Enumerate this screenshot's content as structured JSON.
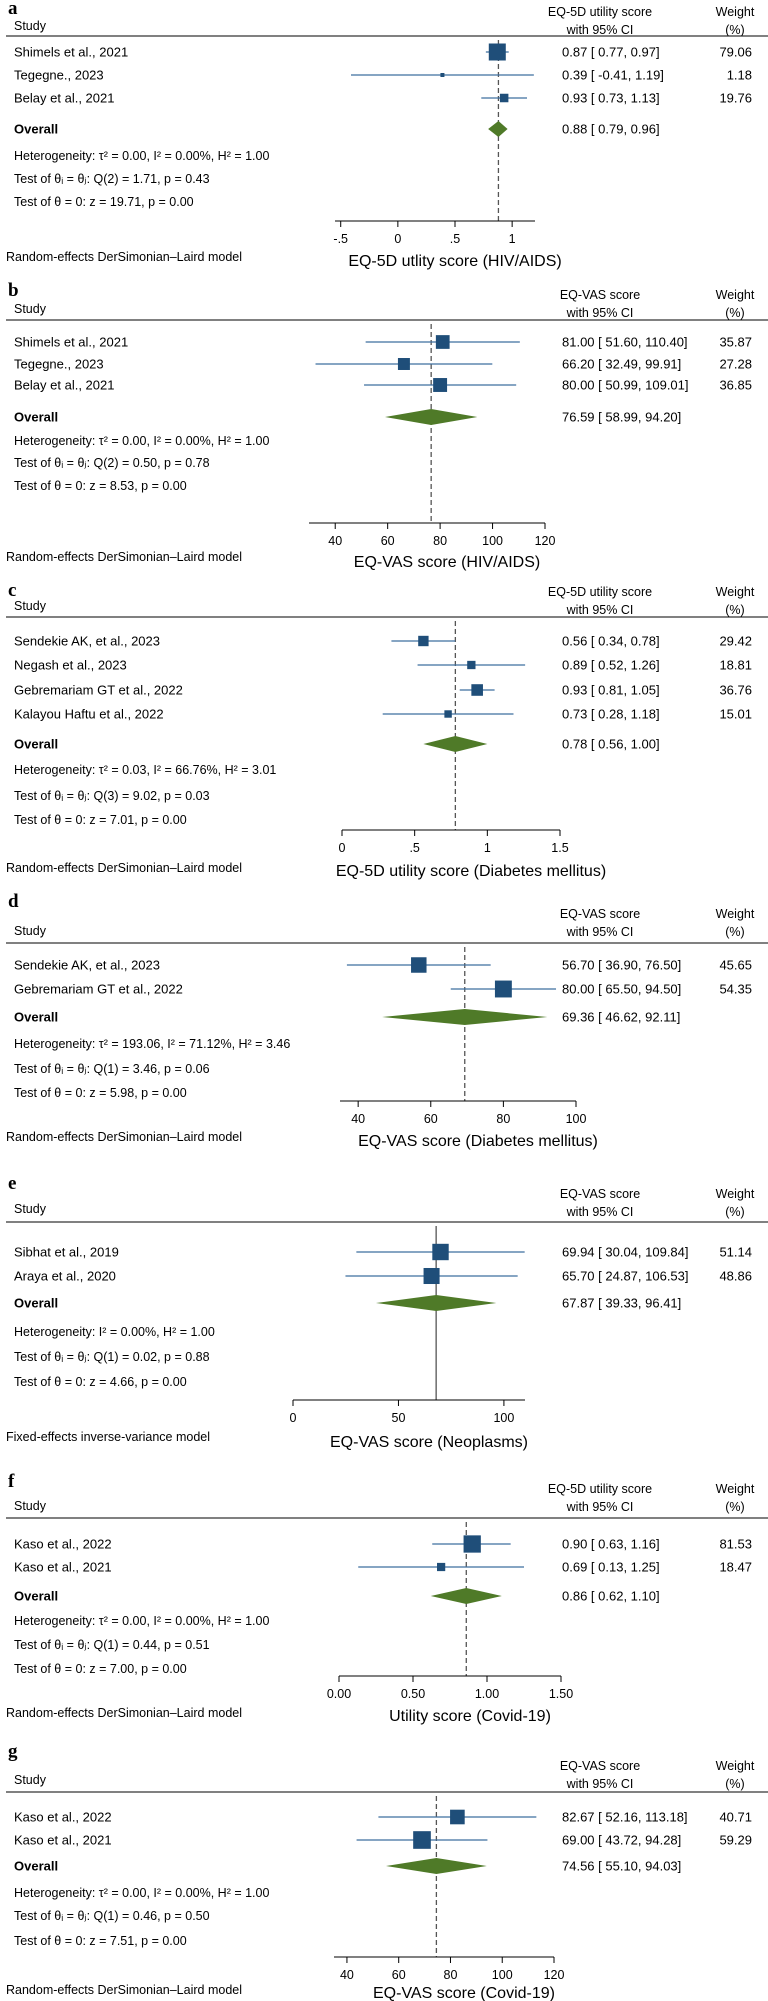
{
  "chart_data": [
    {
      "type": "forest",
      "label": "a",
      "metric_header": [
        "EQ-5D utility score",
        "with 95% CI"
      ],
      "weight_header": [
        "Weight",
        "(%)"
      ],
      "study_header": "Study",
      "studies": [
        {
          "name": "Shimels et al., 2021",
          "est": 0.87,
          "lo": 0.77,
          "hi": 0.97,
          "ci_text": "0.87 [  0.77,  0.97]",
          "weight": 79.06,
          "weight_text": "79.06"
        },
        {
          "name": "Tegegne., 2023",
          "est": 0.39,
          "lo": -0.41,
          "hi": 1.19,
          "ci_text": "0.39 [ -0.41,  1.19]",
          "weight": 1.18,
          "weight_text": "1.18"
        },
        {
          "name": "Belay et al., 2021",
          "est": 0.93,
          "lo": 0.73,
          "hi": 1.13,
          "ci_text": "0.93 [  0.73,  1.13]",
          "weight": 19.76,
          "weight_text": "19.76"
        }
      ],
      "overall": {
        "label": "Overall",
        "est": 0.88,
        "lo": 0.79,
        "hi": 0.96,
        "ci_text": "0.88 [  0.79,  0.96]"
      },
      "stats": [
        "Heterogeneity: τ² = 0.00, I² = 0.00%, H² = 1.00",
        "Test of θᵢ = θⱼ: Q(2) = 1.71, p = 0.43",
        "Test of θ = 0: z = 19.71, p = 0.00"
      ],
      "model": "Random-effects DerSimonian–Laird model",
      "xlabel": "EQ-5D utlity score (HIV/AIDS)",
      "ticks": [
        -0.5,
        0,
        0.5,
        1
      ],
      "tick_labels": [
        "-.5",
        "0",
        ".5",
        "1"
      ],
      "xlim": [
        -0.55,
        1.2
      ],
      "ref_line": "dashed",
      "big_marker": false
    },
    {
      "type": "forest",
      "label": "b",
      "metric_header": [
        "EQ-VAS score",
        "with 95% CI"
      ],
      "weight_header": [
        "Weight",
        "(%)"
      ],
      "study_header": "Study",
      "studies": [
        {
          "name": "Shimels et al., 2021",
          "est": 81.0,
          "lo": 51.6,
          "hi": 110.4,
          "ci_text": "81.00 [ 51.60, 110.40]",
          "weight": 35.87,
          "weight_text": "35.87"
        },
        {
          "name": "Tegegne., 2023",
          "est": 66.2,
          "lo": 32.49,
          "hi": 99.91,
          "ci_text": "66.20 [ 32.49,  99.91]",
          "weight": 27.28,
          "weight_text": "27.28"
        },
        {
          "name": "Belay et al., 2021",
          "est": 80.0,
          "lo": 50.99,
          "hi": 109.01,
          "ci_text": "80.00 [ 50.99, 109.01]",
          "weight": 36.85,
          "weight_text": "36.85"
        }
      ],
      "overall": {
        "label": "Overall",
        "est": 76.59,
        "lo": 58.99,
        "hi": 94.2,
        "ci_text": "76.59 [ 58.99,  94.20]"
      },
      "stats": [
        "Heterogeneity: τ² = 0.00, I² = 0.00%, H² = 1.00",
        "Test of θᵢ = θⱼ: Q(2) = 0.50, p = 0.78",
        "Test of θ = 0: z = 8.53, p = 0.00"
      ],
      "model": "Random-effects DerSimonian–Laird model",
      "xlabel": "EQ-VAS score (HIV/AIDS)",
      "ticks": [
        40,
        60,
        80,
        100,
        120
      ],
      "tick_labels": [
        "40",
        "60",
        "80",
        "100",
        "120"
      ],
      "xlim": [
        30,
        120
      ],
      "ref_line": "dashed",
      "big_marker": true
    },
    {
      "type": "forest",
      "label": "c",
      "metric_header": [
        "EQ-5D utility score",
        "with 95% CI"
      ],
      "weight_header": [
        "Weight",
        "(%)"
      ],
      "study_header": "Study",
      "studies": [
        {
          "name": "Sendekie AK, et al., 2023",
          "est": 0.56,
          "lo": 0.34,
          "hi": 0.78,
          "ci_text": "0.56 [ 0.34, 0.78]",
          "weight": 29.42,
          "weight_text": "29.42"
        },
        {
          "name": "Negash et al., 2023",
          "est": 0.89,
          "lo": 0.52,
          "hi": 1.26,
          "ci_text": "0.89 [ 0.52, 1.26]",
          "weight": 18.81,
          "weight_text": "18.81"
        },
        {
          "name": "Gebremariam GT et al., 2022",
          "est": 0.93,
          "lo": 0.81,
          "hi": 1.05,
          "ci_text": "0.93 [ 0.81, 1.05]",
          "weight": 36.76,
          "weight_text": "36.76"
        },
        {
          "name": "Kalayou Haftu et al., 2022",
          "est": 0.73,
          "lo": 0.28,
          "hi": 1.18,
          "ci_text": "0.73 [ 0.28, 1.18]",
          "weight": 15.01,
          "weight_text": "15.01"
        }
      ],
      "overall": {
        "label": "Overall",
        "est": 0.78,
        "lo": 0.56,
        "hi": 1.0,
        "ci_text": "0.78 [ 0.56, 1.00]"
      },
      "stats": [
        "Heterogeneity: τ² = 0.03, I² = 66.76%, H² = 3.01",
        "Test of θᵢ = θⱼ: Q(3) = 9.02, p = 0.03",
        "Test of θ = 0: z = 7.01, p = 0.00"
      ],
      "model": "Random-effects DerSimonian–Laird model",
      "xlabel": "EQ-5D utility score (Diabetes mellitus)",
      "ticks": [
        0,
        0.5,
        1,
        1.5
      ],
      "tick_labels": [
        "0",
        ".5",
        "1",
        "1.5"
      ],
      "xlim": [
        0,
        1.5
      ],
      "ref_line": "dashed",
      "big_marker": false
    },
    {
      "type": "forest",
      "label": "d",
      "metric_header": [
        "EQ-VAS score",
        "with 95% CI"
      ],
      "weight_header": [
        "Weight",
        "(%)"
      ],
      "study_header": "Study",
      "studies": [
        {
          "name": "Sendekie AK, et al., 2023",
          "est": 56.7,
          "lo": 36.9,
          "hi": 76.5,
          "ci_text": "56.70 [ 36.90, 76.50]",
          "weight": 45.65,
          "weight_text": "45.65"
        },
        {
          "name": "Gebremariam GT et al., 2022",
          "est": 80.0,
          "lo": 65.5,
          "hi": 94.5,
          "ci_text": "80.00 [ 65.50, 94.50]",
          "weight": 54.35,
          "weight_text": "54.35"
        }
      ],
      "overall": {
        "label": "Overall",
        "est": 69.36,
        "lo": 46.62,
        "hi": 92.11,
        "ci_text": "69.36 [ 46.62, 92.11]"
      },
      "stats": [
        "Heterogeneity: τ² = 193.06, I² = 71.12%, H² = 3.46",
        "Test of θᵢ = θⱼ: Q(1) = 3.46, p = 0.06",
        "Test of θ = 0: z = 5.98, p = 0.00"
      ],
      "model": "Random-effects DerSimonian–Laird model",
      "xlabel": "EQ-VAS score (Diabetes mellitus)",
      "ticks": [
        40,
        60,
        80,
        100
      ],
      "tick_labels": [
        "40",
        "60",
        "80",
        "100"
      ],
      "xlim": [
        35,
        100
      ],
      "ref_line": "dashed",
      "big_marker": true
    },
    {
      "type": "forest",
      "label": "e",
      "metric_header": [
        "EQ-VAS score",
        "with 95% CI"
      ],
      "weight_header": [
        "Weight",
        "(%)"
      ],
      "study_header": "Study",
      "studies": [
        {
          "name": "Sibhat et al., 2019",
          "est": 69.94,
          "lo": 30.04,
          "hi": 109.84,
          "ci_text": "69.94 [ 30.04, 109.84]",
          "weight": 51.14,
          "weight_text": "51.14"
        },
        {
          "name": "Araya et al., 2020",
          "est": 65.7,
          "lo": 24.87,
          "hi": 106.53,
          "ci_text": "65.70 [ 24.87, 106.53]",
          "weight": 48.86,
          "weight_text": "48.86"
        }
      ],
      "overall": {
        "label": "Overall",
        "est": 67.87,
        "lo": 39.33,
        "hi": 96.41,
        "ci_text": "67.87 [ 39.33,  96.41]"
      },
      "stats": [
        "Heterogeneity: I² = 0.00%, H² = 1.00",
        "Test of θᵢ = θⱼ: Q(1) = 0.02, p = 0.88",
        "Test of θ = 0: z = 4.66, p = 0.00"
      ],
      "model": "Fixed-effects inverse-variance model",
      "xlabel": "EQ-VAS score (Neoplasms)",
      "ticks": [
        0,
        50,
        100
      ],
      "tick_labels": [
        "0",
        "50",
        "100"
      ],
      "xlim": [
        0,
        110
      ],
      "ref_line": "solid",
      "big_marker": true
    },
    {
      "type": "forest",
      "label": "f",
      "metric_header": [
        "EQ-5D utility score",
        "with 95% CI"
      ],
      "weight_header": [
        "Weight",
        "(%)"
      ],
      "study_header": "Study",
      "studies": [
        {
          "name": "Kaso et al., 2022",
          "est": 0.9,
          "lo": 0.63,
          "hi": 1.16,
          "ci_text": "0.90 [ 0.63, 1.16]",
          "weight": 81.53,
          "weight_text": "81.53"
        },
        {
          "name": "Kaso et al., 2021",
          "est": 0.69,
          "lo": 0.13,
          "hi": 1.25,
          "ci_text": "0.69 [ 0.13, 1.25]",
          "weight": 18.47,
          "weight_text": "18.47"
        }
      ],
      "overall": {
        "label": "Overall",
        "est": 0.86,
        "lo": 0.62,
        "hi": 1.1,
        "ci_text": "0.86 [ 0.62, 1.10]"
      },
      "stats": [
        "Heterogeneity: τ² = 0.00, I² = 0.00%, H² = 1.00",
        "Test of θᵢ = θⱼ: Q(1) = 0.44, p = 0.51",
        "Test of θ = 0: z = 7.00, p = 0.00"
      ],
      "model": "Random-effects DerSimonian–Laird model",
      "xlabel": "Utility score (Covid-19)",
      "ticks": [
        0,
        0.5,
        1,
        1.5
      ],
      "tick_labels": [
        "0.00",
        "0.50",
        "1.00",
        "1.50"
      ],
      "xlim": [
        0,
        1.5
      ],
      "ref_line": "dashed",
      "big_marker": false
    },
    {
      "type": "forest",
      "label": "g",
      "metric_header": [
        "EQ-VAS score",
        "with 95% CI"
      ],
      "weight_header": [
        "Weight",
        "(%)"
      ],
      "study_header": "Study",
      "studies": [
        {
          "name": "Kaso et al., 2022",
          "est": 82.67,
          "lo": 52.16,
          "hi": 113.18,
          "ci_text": "82.67 [ 52.16, 113.18]",
          "weight": 40.71,
          "weight_text": "40.71"
        },
        {
          "name": "Kaso et al., 2021",
          "est": 69.0,
          "lo": 43.72,
          "hi": 94.28,
          "ci_text": "69.00 [ 43.72,  94.28]",
          "weight": 59.29,
          "weight_text": "59.29"
        }
      ],
      "overall": {
        "label": "Overall",
        "est": 74.56,
        "lo": 55.1,
        "hi": 94.03,
        "ci_text": "74.56 [ 55.10,  94.03]"
      },
      "stats": [
        "Heterogeneity: τ² = 0.00, I² = 0.00%, H² = 1.00",
        "Test of θᵢ = θⱼ: Q(1) = 0.46, p = 0.50",
        "Test of θ = 0: z = 7.51, p = 0.00"
      ],
      "model": "Random-effects DerSimonian–Laird model",
      "xlabel": "EQ-VAS score (Covid-19)",
      "ticks": [
        40,
        60,
        80,
        100,
        120
      ],
      "tick_labels": [
        "40",
        "60",
        "80",
        "100",
        "120"
      ],
      "xlim": [
        35,
        120
      ],
      "ref_line": "dashed",
      "big_marker": true
    }
  ],
  "colors": {
    "marker": "#1f4e79",
    "ci_line": "#3f6f9f",
    "diamond": "#4f7a28",
    "axis": "#000000",
    "ref": "#555555"
  }
}
